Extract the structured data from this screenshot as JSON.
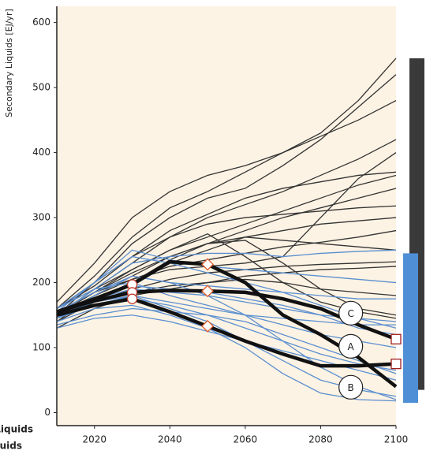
{
  "chart_data": {
    "type": "line",
    "y_label": "Secondary Liquids [EJ/yr]",
    "annotations": [
      "Liquids",
      "uids"
    ],
    "x": [
      2010,
      2020,
      2030,
      2040,
      2050,
      2060,
      2070,
      2080,
      2090,
      2100
    ],
    "xlim": [
      2010,
      2100
    ],
    "xticks": [
      2020,
      2040,
      2060,
      2080,
      2100
    ],
    "ylim": [
      -20,
      625
    ],
    "yticks": [
      0,
      100,
      200,
      300,
      400,
      500,
      600
    ],
    "background": "#fdf3e4",
    "series": [
      {
        "color": "#333333",
        "values": [
          160,
          210,
          270,
          315,
          340,
          370,
          400,
          430,
          480,
          545
        ]
      },
      {
        "color": "#333333",
        "values": [
          150,
          200,
          260,
          300,
          330,
          345,
          380,
          420,
          470,
          520
        ]
      },
      {
        "color": "#333333",
        "values": [
          170,
          230,
          300,
          340,
          365,
          380,
          400,
          425,
          450,
          480
        ]
      },
      {
        "color": "#333333",
        "values": [
          150,
          190,
          230,
          270,
          300,
          320,
          340,
          365,
          390,
          420
        ]
      },
      {
        "color": "#333333",
        "values": [
          160,
          200,
          240,
          280,
          305,
          330,
          345,
          355,
          365,
          370
        ]
      },
      {
        "color": "#333333",
        "values": [
          150,
          185,
          220,
          250,
          270,
          290,
          310,
          330,
          350,
          365
        ]
      },
      {
        "color": "#333333",
        "values": [
          140,
          180,
          210,
          240,
          260,
          280,
          300,
          315,
          330,
          345
        ]
      },
      {
        "color": "#333333",
        "values": [
          160,
          195,
          240,
          270,
          290,
          300,
          305,
          310,
          315,
          318
        ]
      },
      {
        "color": "#333333",
        "values": [
          145,
          175,
          200,
          230,
          250,
          270,
          280,
          290,
          295,
          300
        ]
      },
      {
        "color": "#333333",
        "values": [
          150,
          180,
          205,
          225,
          235,
          245,
          255,
          262,
          270,
          280
        ]
      },
      {
        "color": "#333333",
        "values": [
          155,
          185,
          215,
          240,
          260,
          270,
          265,
          260,
          255,
          250
        ]
      },
      {
        "color": "#333333",
        "values": [
          140,
          170,
          190,
          205,
          215,
          220,
          225,
          228,
          230,
          232
        ]
      },
      {
        "color": "#333333",
        "values": [
          150,
          175,
          200,
          235,
          260,
          265,
          230,
          190,
          160,
          150
        ]
      },
      {
        "color": "#333333",
        "values": [
          160,
          190,
          220,
          250,
          275,
          240,
          200,
          170,
          155,
          145
        ]
      },
      {
        "color": "#333333",
        "values": [
          145,
          170,
          185,
          195,
          200,
          205,
          200,
          190,
          185,
          180
        ]
      },
      {
        "color": "#333333",
        "values": [
          130,
          160,
          180,
          190,
          200,
          210,
          215,
          220,
          222,
          225
        ]
      },
      {
        "color": "#333333",
        "values": [
          155,
          185,
          205,
          220,
          225,
          230,
          240,
          300,
          360,
          400
        ]
      },
      {
        "color": "#5b8fd0",
        "values": [
          150,
          190,
          230,
          240,
          245,
          245,
          240,
          245,
          248,
          250
        ]
      },
      {
        "color": "#5b8fd0",
        "values": [
          155,
          200,
          250,
          235,
          225,
          220,
          215,
          210,
          205,
          200
        ]
      },
      {
        "color": "#5b8fd0",
        "values": [
          145,
          180,
          210,
          200,
          195,
          190,
          185,
          180,
          175,
          175
        ]
      },
      {
        "color": "#5b8fd0",
        "values": [
          150,
          175,
          190,
          185,
          180,
          170,
          160,
          150,
          145,
          140
        ]
      },
      {
        "color": "#5b8fd0",
        "values": [
          160,
          190,
          200,
          180,
          165,
          150,
          135,
          120,
          110,
          100
        ]
      },
      {
        "color": "#5b8fd0",
        "values": [
          145,
          165,
          175,
          165,
          150,
          130,
          110,
          90,
          75,
          65
        ]
      },
      {
        "color": "#5b8fd0",
        "values": [
          150,
          170,
          180,
          160,
          140,
          110,
          80,
          50,
          35,
          25
        ]
      },
      {
        "color": "#5b8fd0",
        "values": [
          140,
          160,
          165,
          150,
          130,
          100,
          60,
          30,
          20,
          18
        ]
      },
      {
        "color": "#5b8fd0",
        "values": [
          155,
          185,
          210,
          200,
          180,
          150,
          110,
          70,
          40,
          20
        ]
      },
      {
        "color": "#5b8fd0",
        "values": [
          135,
          150,
          160,
          155,
          150,
          140,
          120,
          100,
          80,
          60
        ]
      },
      {
        "color": "#5b8fd0",
        "values": [
          150,
          175,
          195,
          190,
          185,
          175,
          165,
          150,
          130,
          120
        ]
      },
      {
        "color": "#5b8fd0",
        "values": [
          130,
          145,
          150,
          140,
          125,
          110,
          95,
          80,
          65,
          50
        ]
      },
      {
        "color": "#5b8fd0",
        "values": [
          160,
          200,
          240,
          230,
          215,
          200,
          185,
          165,
          145,
          130
        ]
      },
      {
        "color": "#5b8fd0",
        "values": [
          145,
          165,
          180,
          170,
          160,
          150,
          145,
          140,
          135,
          135
        ]
      }
    ],
    "highlights": [
      {
        "name": "C",
        "color": "#111111",
        "values": [
          155,
          175,
          197,
          232,
          228,
          200,
          150,
          120,
          85,
          40
        ],
        "label_x": 2088,
        "label_y": 153
      },
      {
        "name": "A",
        "color": "#111111",
        "values": [
          155,
          172,
          185,
          188,
          187,
          185,
          175,
          160,
          135,
          113
        ],
        "label_x": 2088,
        "label_y": 102
      },
      {
        "name": "B",
        "color": "#111111",
        "values": [
          150,
          165,
          175,
          155,
          133,
          110,
          90,
          72,
          72,
          75
        ],
        "label_x": 2088,
        "label_y": 39
      }
    ],
    "markers": [
      {
        "shape": "circle",
        "color": "#c0392b",
        "x": 2030,
        "values": [
          197,
          185,
          175
        ]
      },
      {
        "shape": "diamond",
        "color": "#e05a2a",
        "x": 2050,
        "values": [
          228,
          187,
          133
        ]
      },
      {
        "shape": "square",
        "color": "#a02020",
        "x": 2100,
        "values": [
          113,
          75
        ]
      }
    ],
    "ranges": [
      {
        "color": "#3a3a3a",
        "low": 35,
        "high": 545
      },
      {
        "color": "#4f8fd6",
        "low": 15,
        "high": 245
      }
    ]
  }
}
